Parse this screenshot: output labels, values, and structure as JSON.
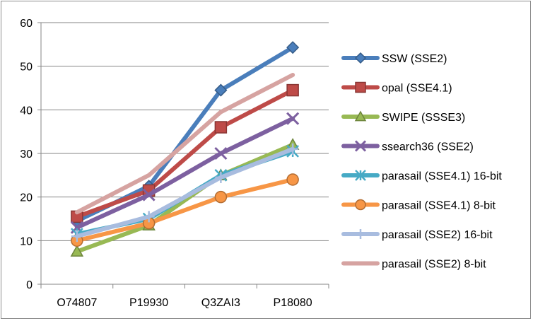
{
  "chart_data": {
    "type": "line",
    "categories": [
      "O74807",
      "P19930",
      "Q3ZAI3",
      "P18080"
    ],
    "ylim": [
      0,
      60
    ],
    "yticks": [
      0,
      10,
      20,
      30,
      40,
      50,
      60
    ],
    "grid": "horizontal",
    "legend_position": "right",
    "series": [
      {
        "name": "SSW (SSE2)",
        "values": [
          14.5,
          22.5,
          44.5,
          54.3
        ],
        "color": "#4a7ebb",
        "marker": "diamond"
      },
      {
        "name": "opal (SSE4.1)",
        "values": [
          15.5,
          21.5,
          36.0,
          44.5
        ],
        "color": "#be4b48",
        "marker": "square"
      },
      {
        "name": "SWIPE (SSSE3)",
        "values": [
          7.5,
          13.5,
          25.0,
          32.0
        ],
        "color": "#98b954",
        "marker": "triangle"
      },
      {
        "name": "ssearch36 (SSE2)",
        "values": [
          13.0,
          20.5,
          30.0,
          38.0
        ],
        "color": "#7d60a0",
        "marker": "x"
      },
      {
        "name": "parasail (SSE4.1) 16-bit",
        "values": [
          11.5,
          15.0,
          25.0,
          30.5
        ],
        "color": "#46aac5",
        "marker": "star"
      },
      {
        "name": "parasail (SSE4.1) 8-bit",
        "values": [
          10.0,
          14.0,
          20.0,
          24.0
        ],
        "color": "#f79646",
        "marker": "circle"
      },
      {
        "name": "parasail (SSE2) 16-bit",
        "values": [
          11.0,
          15.5,
          24.5,
          31.0
        ],
        "color": "#a8bcdf",
        "marker": "plus"
      },
      {
        "name": "parasail (SSE2) 8-bit",
        "values": [
          16.5,
          25.0,
          39.5,
          48.0
        ],
        "color": "#d6a3a1",
        "marker": "none"
      }
    ]
  }
}
